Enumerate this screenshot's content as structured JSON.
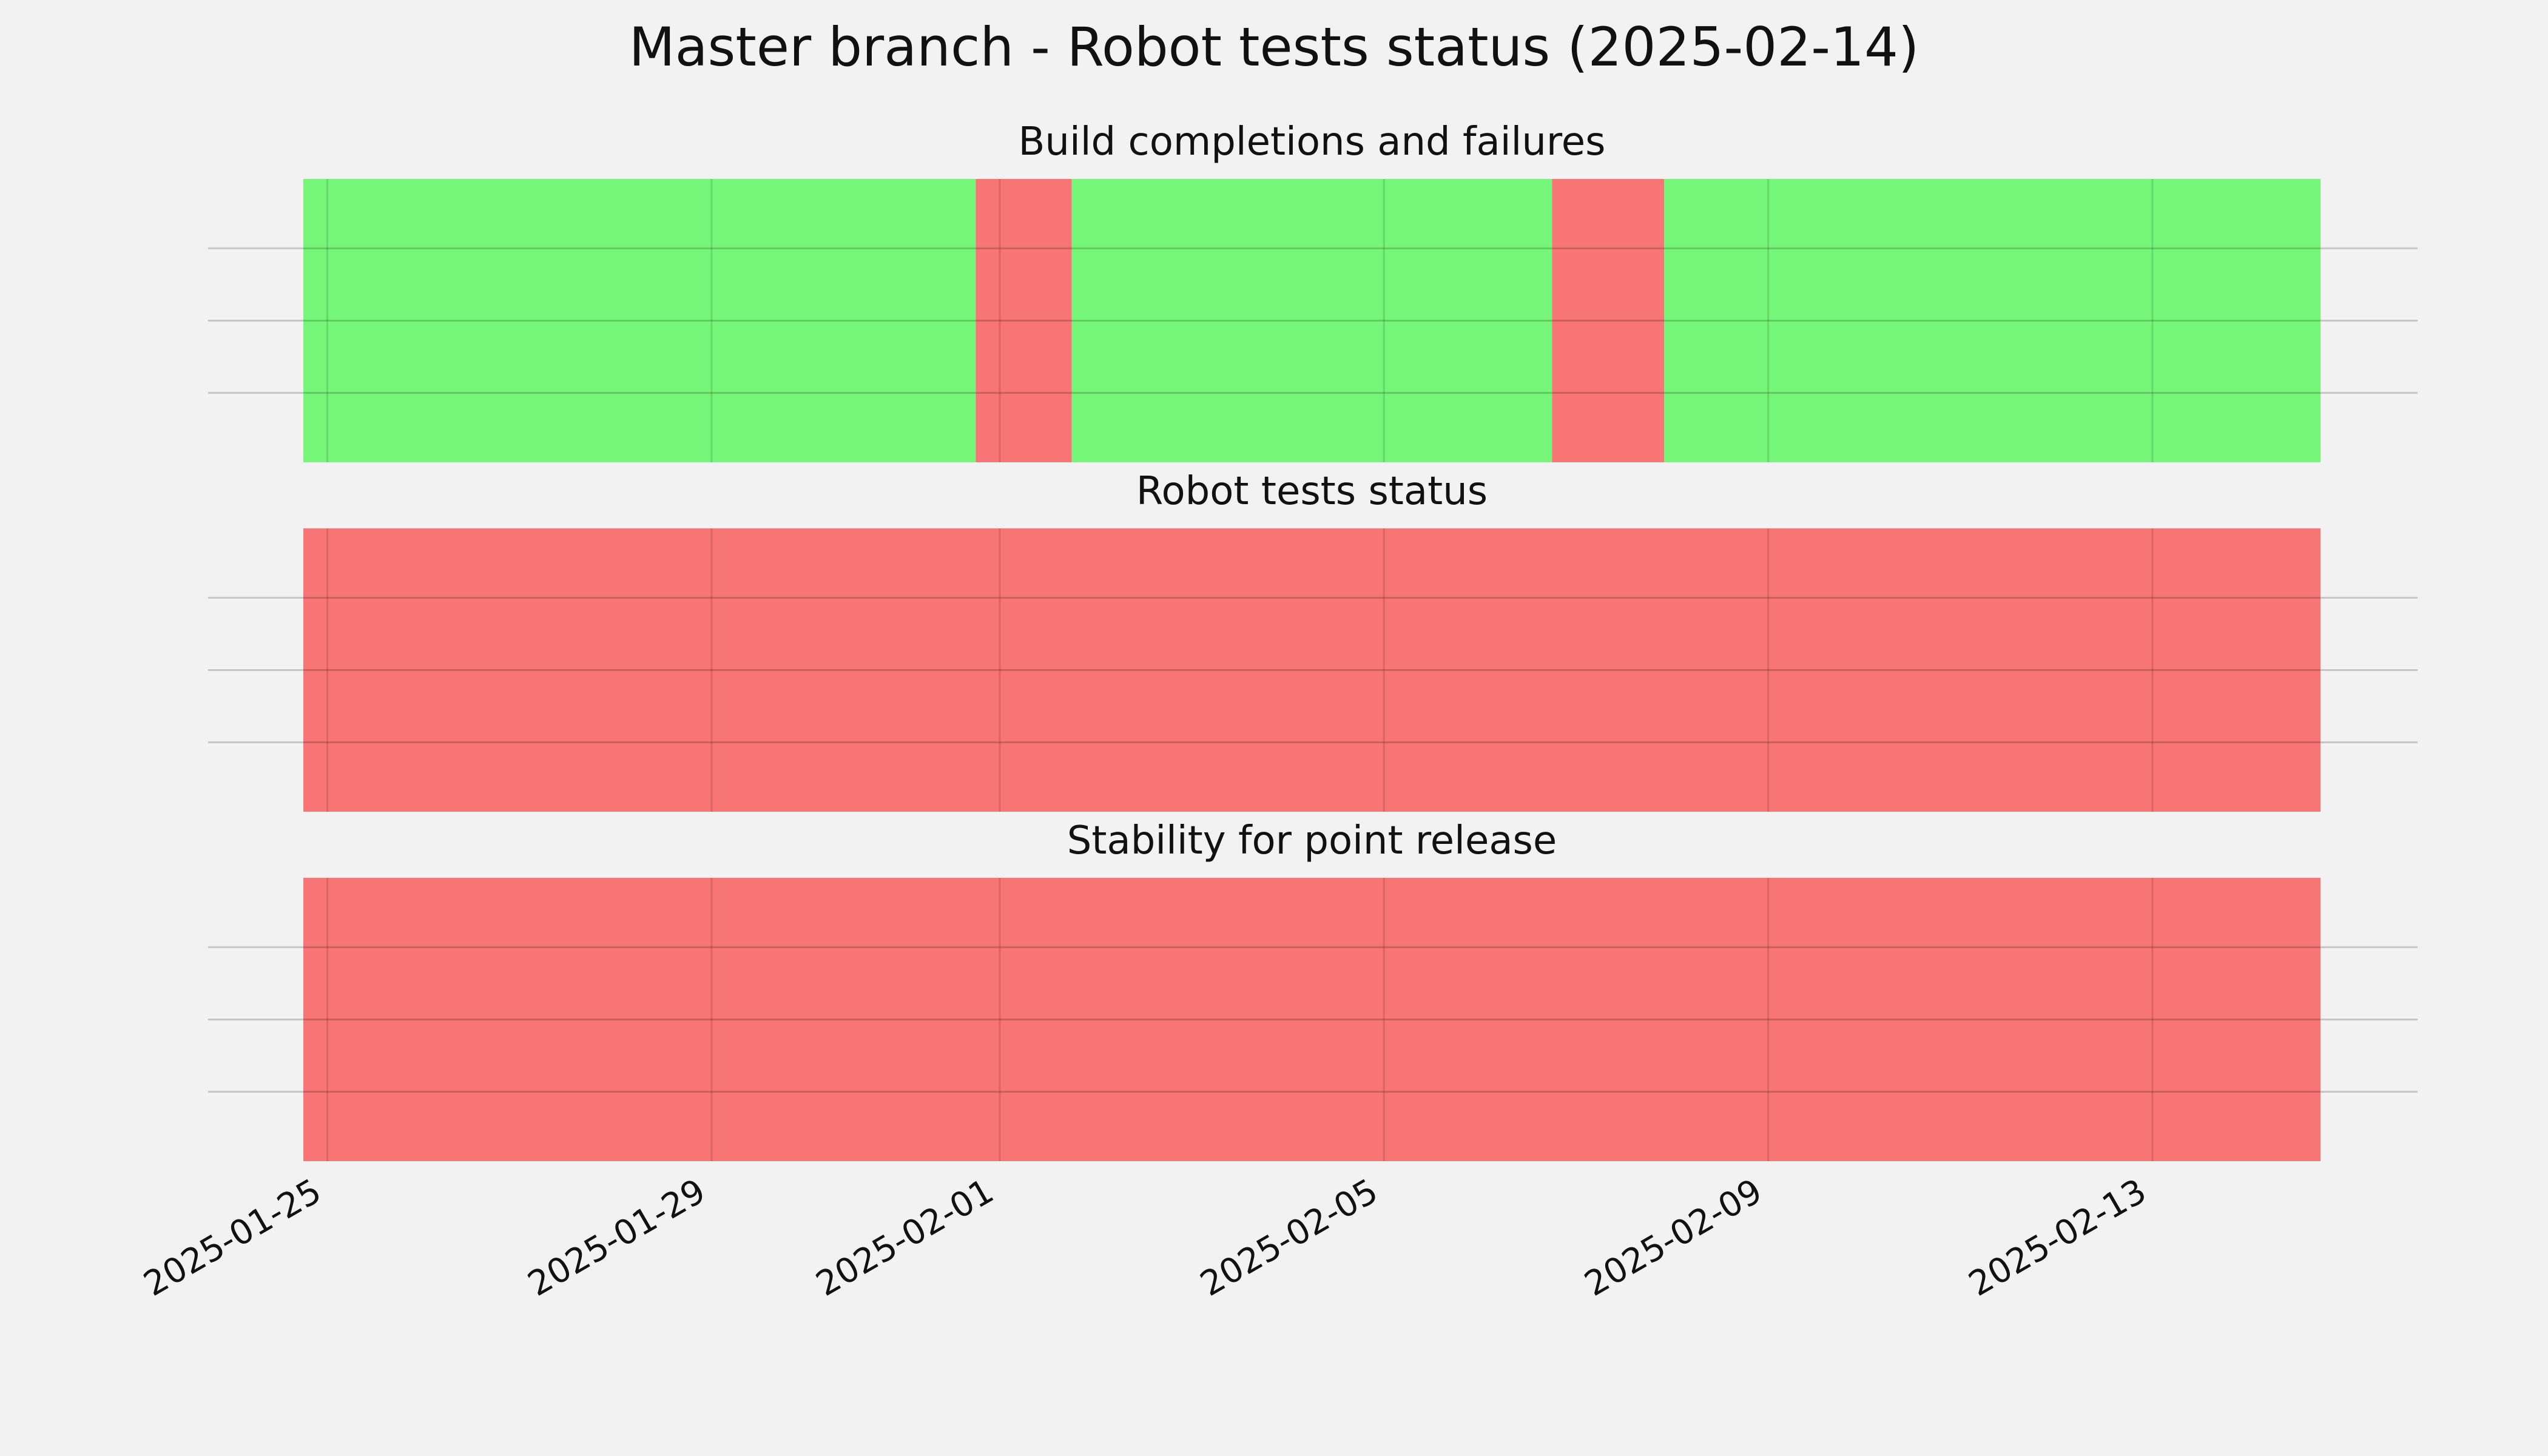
{
  "figure": {
    "title": "Master branch - Robot tests status (2025-02-14)"
  },
  "colors": {
    "background": "#f2f2f2",
    "success": "#75f678",
    "failure": "#f77574",
    "gridline": "#c8c8c8"
  },
  "chart_data": {
    "type": "timeline",
    "x_type": "date",
    "xlim": [
      "2025-01-24 18:00",
      "2025-02-14 18:00"
    ],
    "x_ticks": [
      "2025-01-25",
      "2025-01-29",
      "2025-02-01",
      "2025-02-05",
      "2025-02-09",
      "2025-02-13"
    ],
    "grid": true,
    "panels": [
      {
        "title": "Build completions and failures",
        "segments": [
          {
            "start": "2025-01-24 18:00",
            "end": "2025-01-31 18:00",
            "status": "success"
          },
          {
            "start": "2025-01-31 18:00",
            "end": "2025-02-01 18:00",
            "status": "failure"
          },
          {
            "start": "2025-02-01 18:00",
            "end": "2025-02-06 18:00",
            "status": "success"
          },
          {
            "start": "2025-02-06 18:00",
            "end": "2025-02-07 22:00",
            "status": "failure"
          },
          {
            "start": "2025-02-07 22:00",
            "end": "2025-02-14 18:00",
            "status": "success"
          }
        ]
      },
      {
        "title": "Robot tests status",
        "segments": [
          {
            "start": "2025-01-24 18:00",
            "end": "2025-02-14 18:00",
            "status": "failure"
          }
        ]
      },
      {
        "title": "Stability for point release",
        "segments": [
          {
            "start": "2025-01-24 18:00",
            "end": "2025-02-14 18:00",
            "status": "failure"
          }
        ]
      }
    ]
  }
}
